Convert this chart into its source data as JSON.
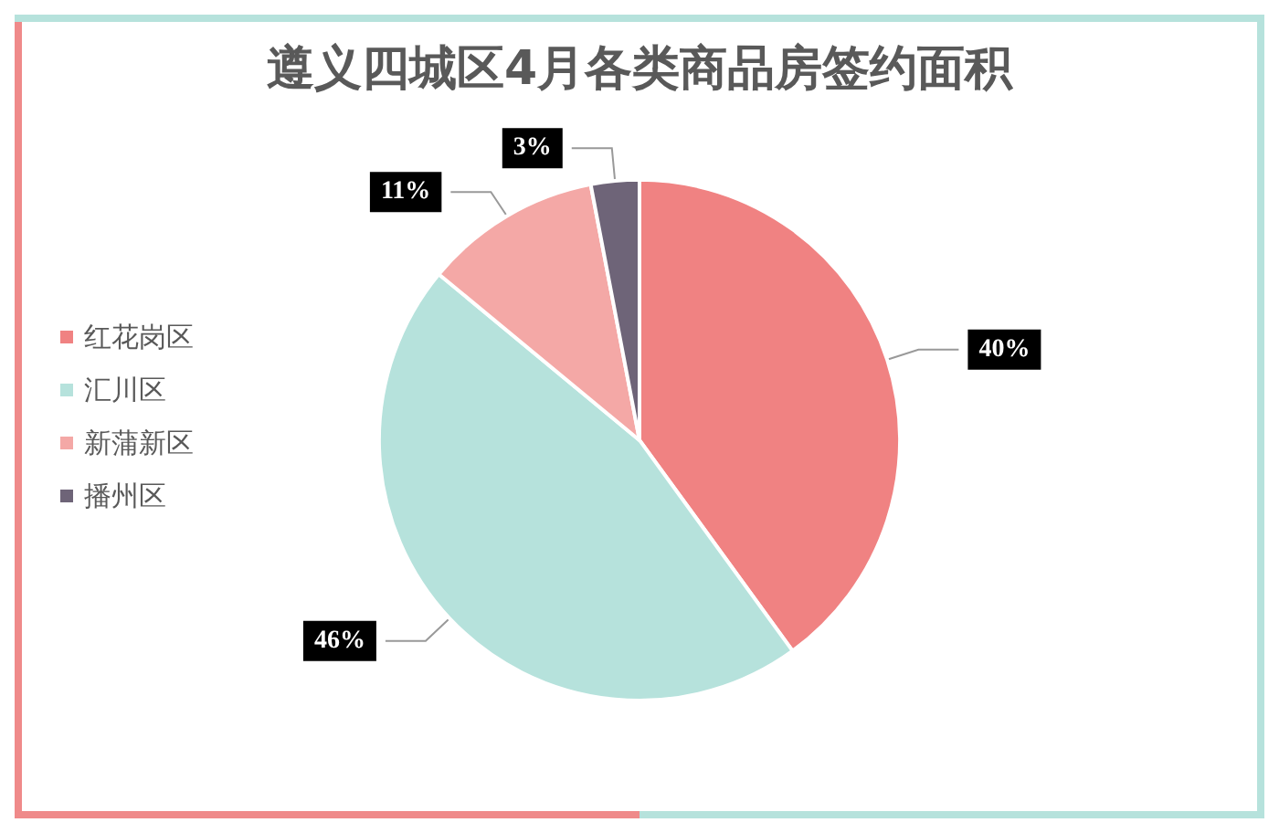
{
  "chart_data": {
    "type": "pie",
    "title": "遵义四城区4月各类商品房签约面积",
    "categories": [
      "红花岗区",
      "汇川区",
      "新蒲新区",
      "播州区"
    ],
    "values": [
      40,
      46,
      11,
      3
    ],
    "colors": [
      "#f08282",
      "#b6e2dc",
      "#f4a8a6",
      "#6e6478"
    ],
    "value_labels": [
      "40%",
      "46%",
      "11%",
      "3%"
    ],
    "legend": "left"
  }
}
